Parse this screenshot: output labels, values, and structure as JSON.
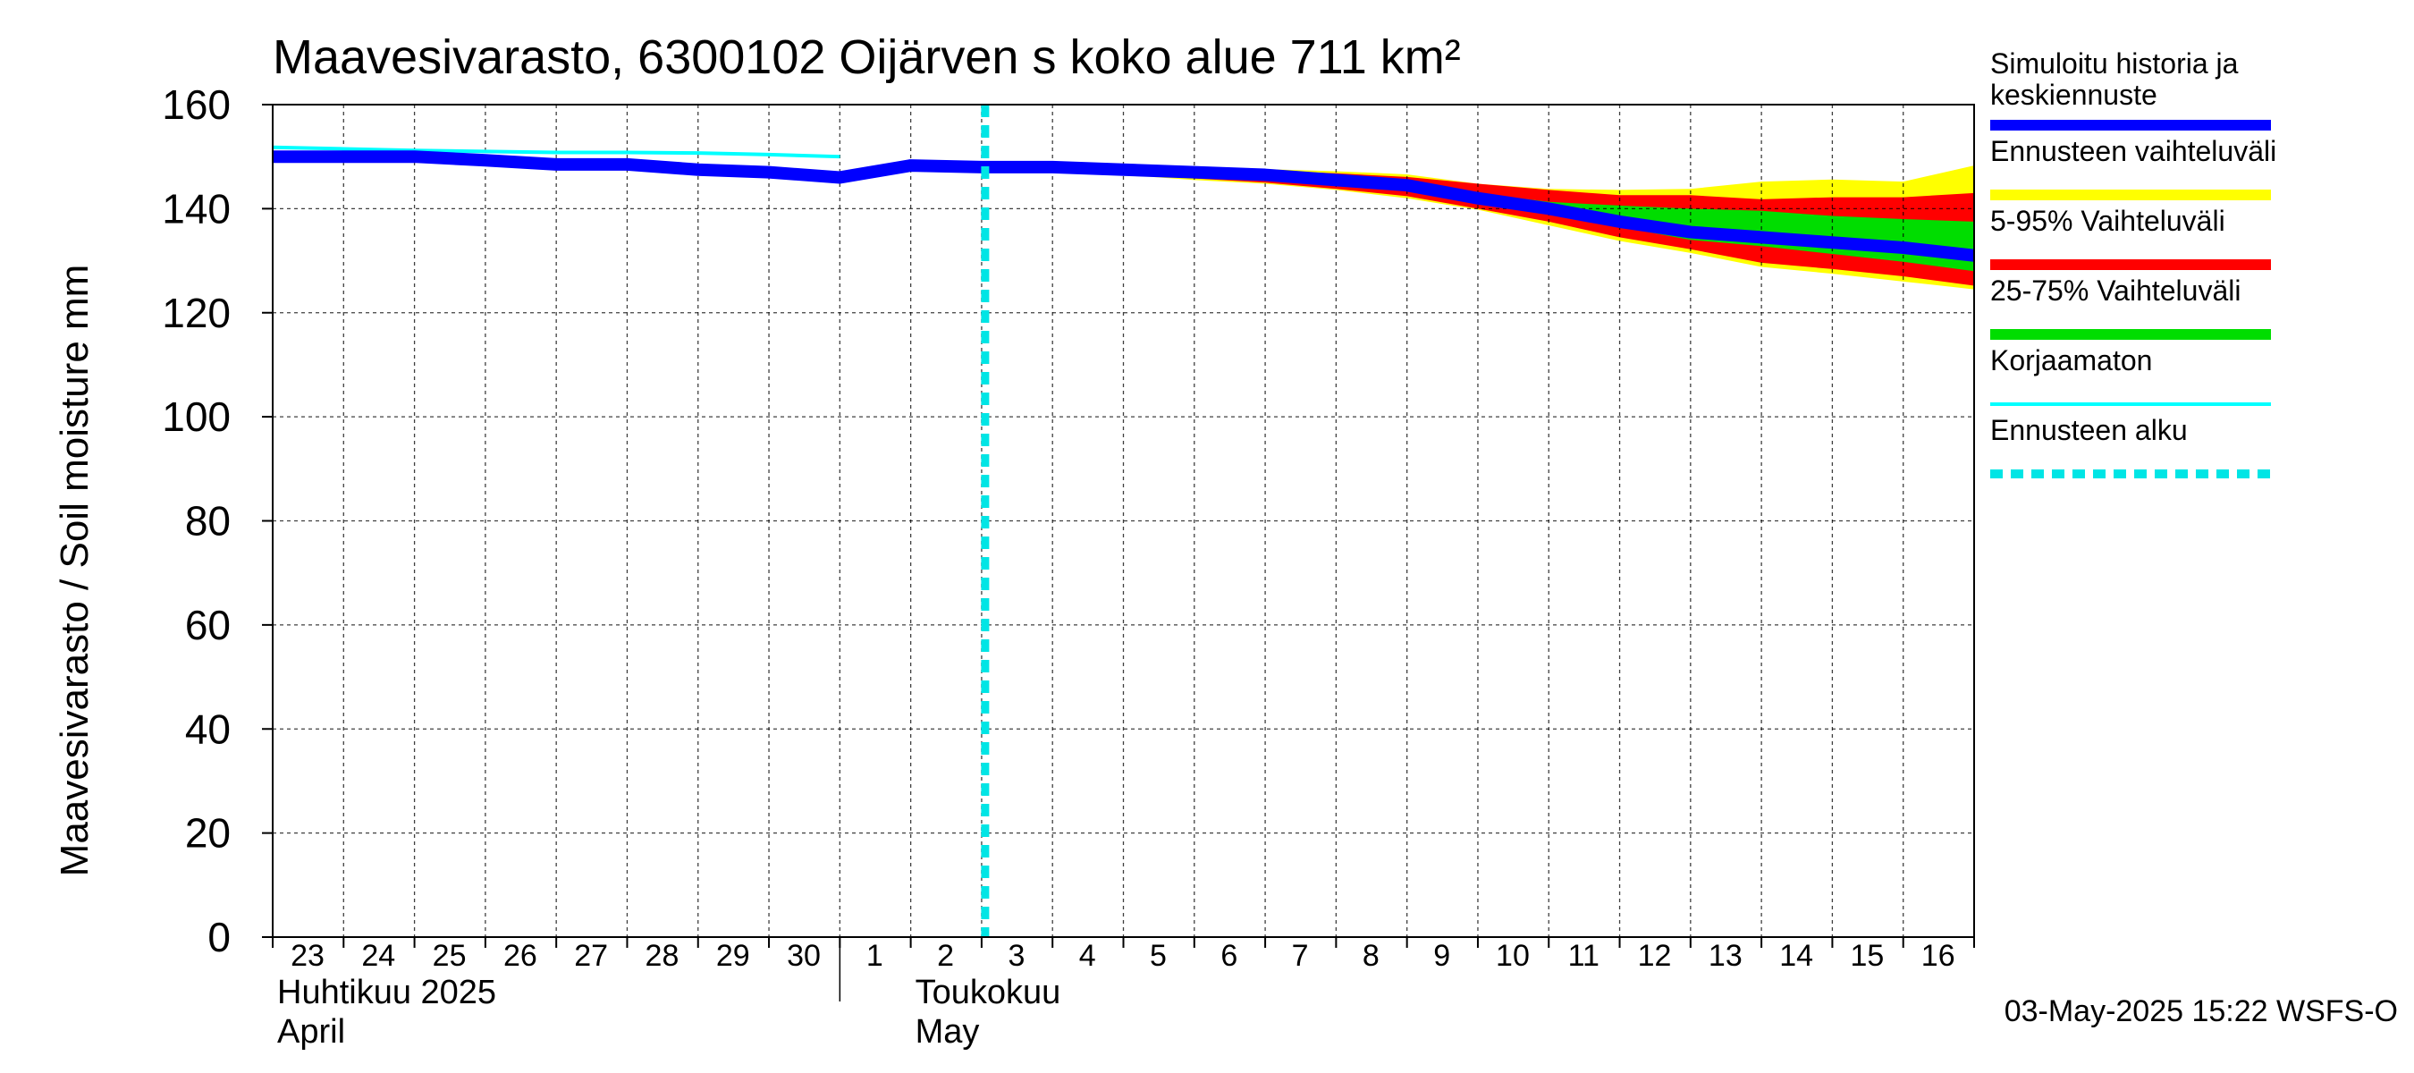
{
  "chart_data": {
    "type": "area",
    "title": "Maavesivarasto, 6300102 Oijärven s koko alue 711 km²",
    "ylabel": "Maavesivarasto / Soil moisture   mm",
    "ylim": [
      0,
      160
    ],
    "yticks": [
      0,
      20,
      40,
      60,
      80,
      100,
      120,
      140,
      160
    ],
    "x_range": [
      0,
      24
    ],
    "day_labels": [
      "23",
      "24",
      "25",
      "26",
      "27",
      "28",
      "29",
      "30",
      "1",
      "2",
      "3",
      "4",
      "5",
      "6",
      "7",
      "8",
      "9",
      "10",
      "11",
      "12",
      "13",
      "14",
      "15",
      "16"
    ],
    "month_labels": [
      {
        "line1": "Huhtikuu  2025",
        "line2": "April",
        "day_index": 0
      },
      {
        "line1": "Toukokuu",
        "line2": "May",
        "day_index": 9
      }
    ],
    "month_boundary_day": 8,
    "forecast_start_day": 10.05,
    "footer": "03-May-2025 15:22 WSFS-O",
    "legend": [
      {
        "label": "Simuloitu historia ja keskiennuste",
        "color": "#0000ff",
        "style": "thick"
      },
      {
        "label": "Ennusteen vaihteluväli",
        "color": "#ffff00",
        "style": "thick"
      },
      {
        "label": "5-95% Vaihteluväli",
        "color": "#ff0000",
        "style": "thick"
      },
      {
        "label": "25-75% Vaihteluväli",
        "color": "#00dd00",
        "style": "thick"
      },
      {
        "label": "Korjaamaton",
        "color": "#00ffff",
        "style": "thin"
      },
      {
        "label": "Ennusteen alku",
        "color": "#00e5e5",
        "style": "dashed"
      }
    ],
    "series": [
      {
        "name": "Simuloitu historia ja keskiennuste",
        "color": "#0000ff",
        "x": [
          0,
          1,
          2,
          3,
          4,
          5,
          6,
          7,
          8,
          9,
          10,
          11,
          12,
          13,
          14,
          15,
          16,
          17,
          18,
          19,
          20,
          21,
          22,
          23,
          24
        ],
        "y": [
          150,
          150,
          150,
          149.3,
          148.5,
          148.5,
          147.5,
          147,
          146,
          148.3,
          148,
          148,
          147.5,
          147,
          146.5,
          145.5,
          144.5,
          142,
          140,
          137.5,
          135.5,
          134.5,
          133.5,
          132.5,
          131
        ]
      },
      {
        "name": "Korjaamaton",
        "color": "#00ffff",
        "x": [
          0,
          1,
          2,
          3,
          4,
          5,
          6,
          7,
          8
        ],
        "y": [
          151.8,
          151.5,
          151.2,
          151,
          150.8,
          150.8,
          150.7,
          150.4,
          150
        ]
      },
      {
        "name": "Ennusteen vaihteluväli (max)",
        "color": "#ffff00",
        "x": [
          10,
          11,
          12,
          13,
          14,
          15,
          16,
          17,
          18,
          19,
          20,
          21,
          22,
          23,
          24
        ],
        "y": [
          148.3,
          148.3,
          148,
          147.8,
          147.6,
          147.2,
          146.6,
          144.8,
          143.8,
          143.6,
          143.8,
          145.2,
          145.6,
          145.2,
          148.3
        ]
      },
      {
        "name": "Ennusteen vaihteluväli (min)",
        "color": "#ffff00",
        "x": [
          10,
          11,
          12,
          13,
          14,
          15,
          16,
          17,
          18,
          19,
          20,
          21,
          22,
          23,
          24
        ],
        "y": [
          147.8,
          147.5,
          146.5,
          145.5,
          144.8,
          143.6,
          142,
          139.8,
          136.8,
          133.8,
          131.5,
          128.8,
          127.5,
          126,
          124.5
        ]
      },
      {
        "name": "5% (upper)",
        "color": "#ff0000",
        "x": [
          10,
          11,
          12,
          13,
          14,
          15,
          16,
          17,
          18,
          19,
          20,
          21,
          22,
          23,
          24
        ],
        "y": [
          148.2,
          148.2,
          147.9,
          147.5,
          147.3,
          146.8,
          146.1,
          144.8,
          143.6,
          142.6,
          142.6,
          141.8,
          142.2,
          142.2,
          143
        ]
      },
      {
        "name": "95% (lower)",
        "color": "#ff0000",
        "x": [
          10,
          11,
          12,
          13,
          14,
          15,
          16,
          17,
          18,
          19,
          20,
          21,
          22,
          23,
          24
        ],
        "y": [
          147.9,
          147.6,
          146.7,
          145.8,
          145,
          143.8,
          142.4,
          140,
          137.5,
          134.5,
          132.2,
          129.6,
          128.4,
          127,
          125.2
        ]
      },
      {
        "name": "25% (upper)",
        "color": "#00dd00",
        "x": [
          10,
          11,
          12,
          13,
          14,
          15,
          16,
          17,
          18,
          19,
          20,
          21,
          22,
          23,
          24
        ],
        "y": [
          148.1,
          148,
          147.7,
          147.3,
          146.9,
          146,
          144.9,
          143,
          141.3,
          140.6,
          140,
          139.6,
          138.6,
          138,
          137.5
        ]
      },
      {
        "name": "75% (lower)",
        "color": "#00dd00",
        "x": [
          10,
          11,
          12,
          13,
          14,
          15,
          16,
          17,
          18,
          19,
          20,
          21,
          22,
          23,
          24
        ],
        "y": [
          147.95,
          147.7,
          147.2,
          146.6,
          146,
          144.9,
          143.6,
          141,
          139,
          136.5,
          134,
          132.8,
          131.3,
          129.8,
          128
        ]
      }
    ]
  }
}
